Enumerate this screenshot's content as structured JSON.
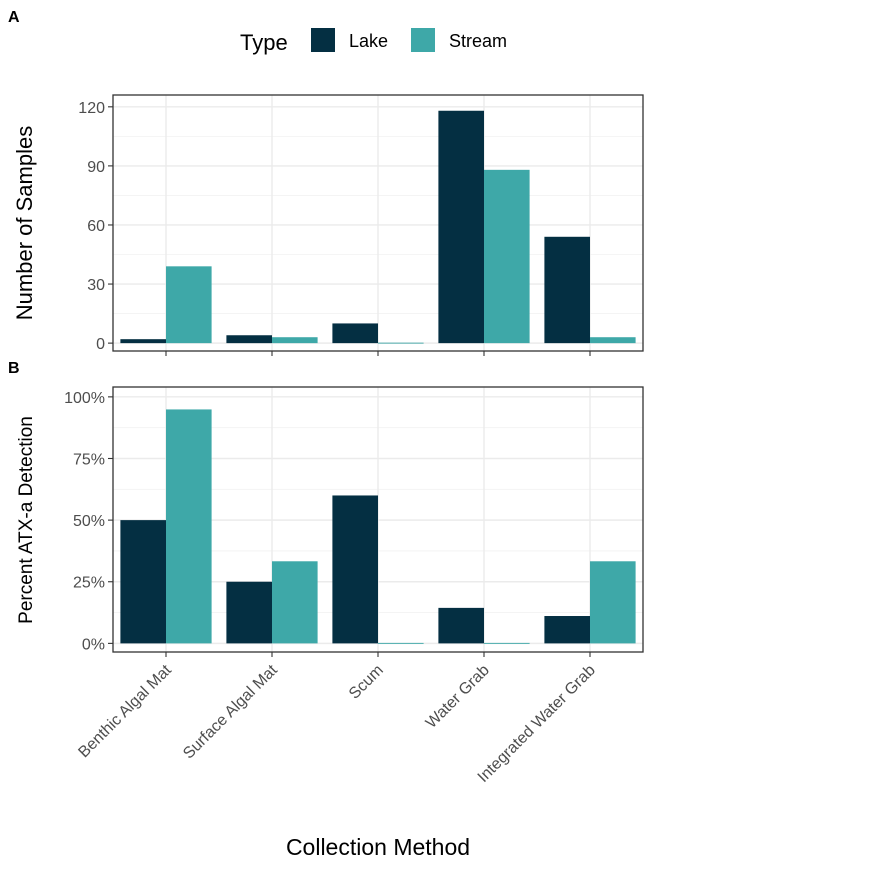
{
  "legend": {
    "title": "Type",
    "items": [
      {
        "label": "Lake",
        "color": "#042f42"
      },
      {
        "label": "Stream",
        "color": "#3ea8a8"
      }
    ]
  },
  "x_axis_title": "Collection Method",
  "chart_data": [
    {
      "type": "bar",
      "panel_label": "A",
      "ylabel": "Number of Samples",
      "categories": [
        "Benthic Algal Mat",
        "Surface Algal Mat",
        "Scum",
        "Water Grab",
        "Integrated Water Grab"
      ],
      "series": [
        {
          "name": "Lake",
          "values": [
            2,
            4,
            10,
            118,
            54
          ]
        },
        {
          "name": "Stream",
          "values": [
            39,
            3,
            0,
            88,
            3
          ]
        }
      ],
      "ylim": [
        -4,
        126
      ],
      "yticks": [
        0,
        30,
        60,
        90,
        120
      ],
      "ytick_labels": [
        "0",
        "30",
        "60",
        "90",
        "120"
      ],
      "grid": true
    },
    {
      "type": "bar",
      "panel_label": "B",
      "ylabel": "Percent ATX-a Detection",
      "categories": [
        "Benthic Algal Mat",
        "Surface Algal Mat",
        "Scum",
        "Water Grab",
        "Integrated Water Grab"
      ],
      "series": [
        {
          "name": "Lake",
          "values": [
            50,
            25,
            60,
            14.4,
            11.1
          ]
        },
        {
          "name": "Stream",
          "values": [
            94.9,
            33.3,
            0,
            0,
            33.3
          ]
        }
      ],
      "ylim": [
        -3.5,
        104
      ],
      "yticks": [
        0,
        25,
        50,
        75,
        100
      ],
      "ytick_labels": [
        "0%",
        "25%",
        "50%",
        "75%",
        "100%"
      ],
      "grid": true
    }
  ]
}
